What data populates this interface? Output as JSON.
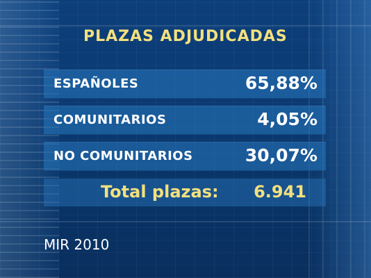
{
  "title": "PLAZAS ADJUDICADAS",
  "rows": [
    {
      "label": "ESPAÑOLES",
      "value": "65,88%"
    },
    {
      "label": "COMUNITARIOS",
      "value": "4,05%"
    },
    {
      "label": "NO COMUNITARIOS",
      "value": "30,07%"
    }
  ],
  "total": {
    "label": "Total plazas:",
    "value": "6.941"
  },
  "source": "MIR 2010",
  "colors": {
    "title": "#f3e07e",
    "row_background": "#2878be",
    "page_background": "#0b3a73",
    "text": "#ffffff"
  }
}
